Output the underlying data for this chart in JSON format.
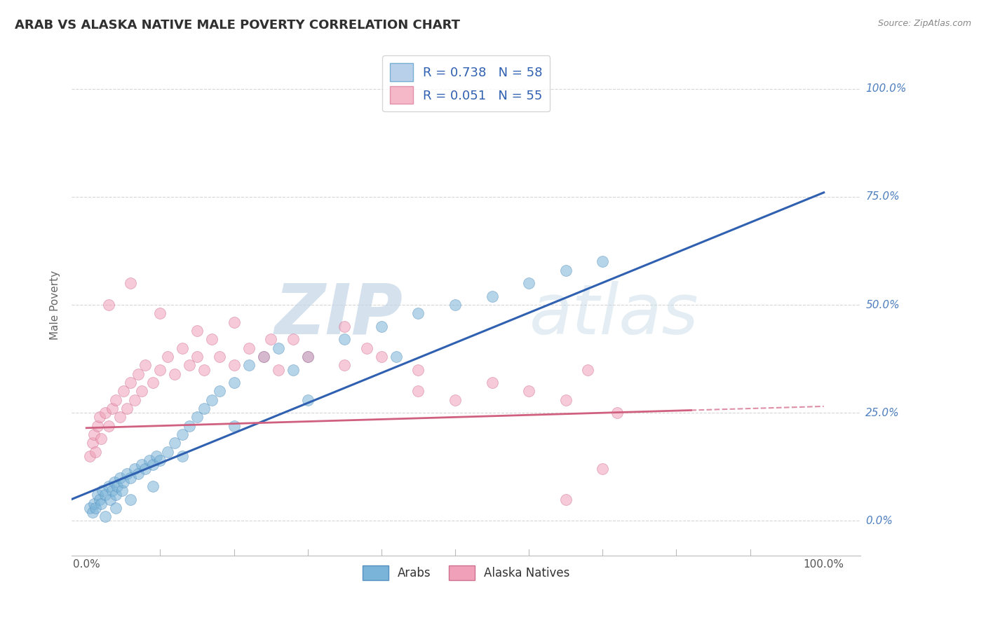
{
  "title": "ARAB VS ALASKA NATIVE MALE POVERTY CORRELATION CHART",
  "source": "Source: ZipAtlas.com",
  "ylabel": "Male Poverty",
  "ytick_labels": [
    "0.0%",
    "25.0%",
    "50.0%",
    "75.0%",
    "100.0%"
  ],
  "ytick_values": [
    0.0,
    0.25,
    0.5,
    0.75,
    1.0
  ],
  "xtick_labels": [
    "0.0%",
    "100.0%"
  ],
  "xtick_values": [
    0.0,
    1.0
  ],
  "xlim": [
    -0.02,
    1.05
  ],
  "ylim": [
    -0.08,
    1.08
  ],
  "legend1_entries": [
    {
      "label": "R = 0.738   N = 58",
      "facecolor": "#b8d0ea",
      "edgecolor": "#7aafd4"
    },
    {
      "label": "R = 0.051   N = 55",
      "facecolor": "#f5b8c8",
      "edgecolor": "#e090a8"
    }
  ],
  "arab_dot_color": "#7ab4d8",
  "arab_dot_edge": "#5590c0",
  "alaska_dot_color": "#f0a0b8",
  "alaska_dot_edge": "#d07090",
  "arab_line_color": "#3060b0",
  "alaska_line_color": "#d06080",
  "watermark_zip": "ZIP",
  "watermark_atlas": "atlas",
  "watermark_color": "#ccd8e8",
  "background_color": "#ffffff",
  "grid_color": "#cccccc",
  "title_color": "#303030",
  "right_label_color": "#5080c0",
  "arab_line_x0": 0.0,
  "arab_line_y0": 0.05,
  "arab_line_x1": 1.0,
  "arab_line_y1": 0.76,
  "alaska_line_x0": 0.0,
  "alaska_line_y0": 0.215,
  "alaska_line_x1": 1.0,
  "alaska_line_y1": 0.265,
  "alaska_line_dash_start": 0.82,
  "arab_scatter_x": [
    0.005,
    0.008,
    0.01,
    0.012,
    0.015,
    0.018,
    0.02,
    0.022,
    0.025,
    0.03,
    0.032,
    0.035,
    0.038,
    0.04,
    0.042,
    0.045,
    0.048,
    0.05,
    0.055,
    0.06,
    0.065,
    0.07,
    0.075,
    0.08,
    0.085,
    0.09,
    0.095,
    0.1,
    0.11,
    0.12,
    0.13,
    0.14,
    0.15,
    0.16,
    0.17,
    0.18,
    0.2,
    0.22,
    0.24,
    0.26,
    0.28,
    0.3,
    0.35,
    0.4,
    0.45,
    0.5,
    0.55,
    0.6,
    0.65,
    0.7,
    0.025,
    0.04,
    0.06,
    0.09,
    0.13,
    0.2,
    0.3,
    0.42
  ],
  "arab_scatter_y": [
    0.03,
    0.02,
    0.04,
    0.03,
    0.06,
    0.05,
    0.04,
    0.07,
    0.06,
    0.08,
    0.05,
    0.07,
    0.09,
    0.06,
    0.08,
    0.1,
    0.07,
    0.09,
    0.11,
    0.1,
    0.12,
    0.11,
    0.13,
    0.12,
    0.14,
    0.13,
    0.15,
    0.14,
    0.16,
    0.18,
    0.2,
    0.22,
    0.24,
    0.26,
    0.28,
    0.3,
    0.32,
    0.36,
    0.38,
    0.4,
    0.35,
    0.38,
    0.42,
    0.45,
    0.48,
    0.5,
    0.52,
    0.55,
    0.58,
    0.6,
    0.01,
    0.03,
    0.05,
    0.08,
    0.15,
    0.22,
    0.28,
    0.38
  ],
  "alaska_scatter_x": [
    0.005,
    0.008,
    0.01,
    0.012,
    0.015,
    0.018,
    0.02,
    0.025,
    0.03,
    0.035,
    0.04,
    0.045,
    0.05,
    0.055,
    0.06,
    0.065,
    0.07,
    0.075,
    0.08,
    0.09,
    0.1,
    0.11,
    0.12,
    0.13,
    0.14,
    0.15,
    0.16,
    0.17,
    0.18,
    0.2,
    0.22,
    0.24,
    0.26,
    0.28,
    0.3,
    0.35,
    0.38,
    0.4,
    0.45,
    0.5,
    0.55,
    0.6,
    0.65,
    0.68,
    0.72,
    0.03,
    0.06,
    0.1,
    0.15,
    0.2,
    0.25,
    0.35,
    0.45,
    0.7,
    0.65
  ],
  "alaska_scatter_y": [
    0.15,
    0.18,
    0.2,
    0.16,
    0.22,
    0.24,
    0.19,
    0.25,
    0.22,
    0.26,
    0.28,
    0.24,
    0.3,
    0.26,
    0.32,
    0.28,
    0.34,
    0.3,
    0.36,
    0.32,
    0.35,
    0.38,
    0.34,
    0.4,
    0.36,
    0.38,
    0.35,
    0.42,
    0.38,
    0.36,
    0.4,
    0.38,
    0.35,
    0.42,
    0.38,
    0.36,
    0.4,
    0.38,
    0.35,
    0.28,
    0.32,
    0.3,
    0.28,
    0.35,
    0.25,
    0.5,
    0.55,
    0.48,
    0.44,
    0.46,
    0.42,
    0.45,
    0.3,
    0.12,
    0.05
  ],
  "xtick_minor_values": [
    0.1,
    0.2,
    0.3,
    0.4,
    0.5,
    0.6,
    0.7,
    0.8,
    0.9
  ],
  "legend2_items": [
    "Arabs",
    "Alaska Natives"
  ],
  "legend2_colors": [
    "#7ab4d8",
    "#f0a0b8"
  ],
  "legend2_edges": [
    "#5590c0",
    "#d07090"
  ]
}
